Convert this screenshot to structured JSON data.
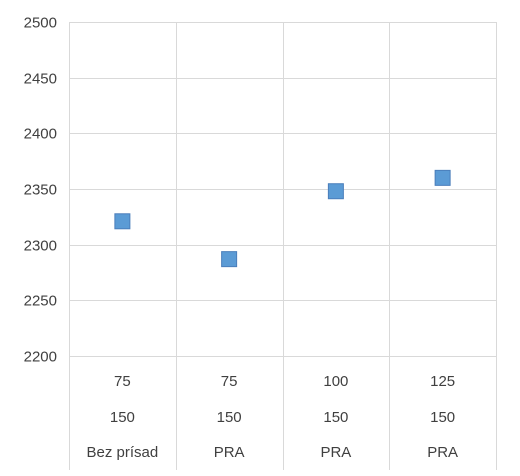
{
  "chart_data": {
    "type": "scatter",
    "title": "",
    "xlabel": "",
    "ylabel": "",
    "ylim": [
      2200,
      2500
    ],
    "yticks": [
      2200,
      2250,
      2300,
      2350,
      2400,
      2450,
      2500
    ],
    "grid": true,
    "legend": "none",
    "marker_shape": "square",
    "marker_color": "#5b9bd5",
    "categories": [
      [
        "75",
        "150",
        "Bez prísad"
      ],
      [
        "75",
        "150",
        "PRA"
      ],
      [
        "100",
        "150",
        "PRA"
      ],
      [
        "125",
        "150",
        "PRA"
      ]
    ],
    "series": [
      {
        "values": [
          2321,
          2287,
          2348,
          2360
        ]
      }
    ]
  }
}
